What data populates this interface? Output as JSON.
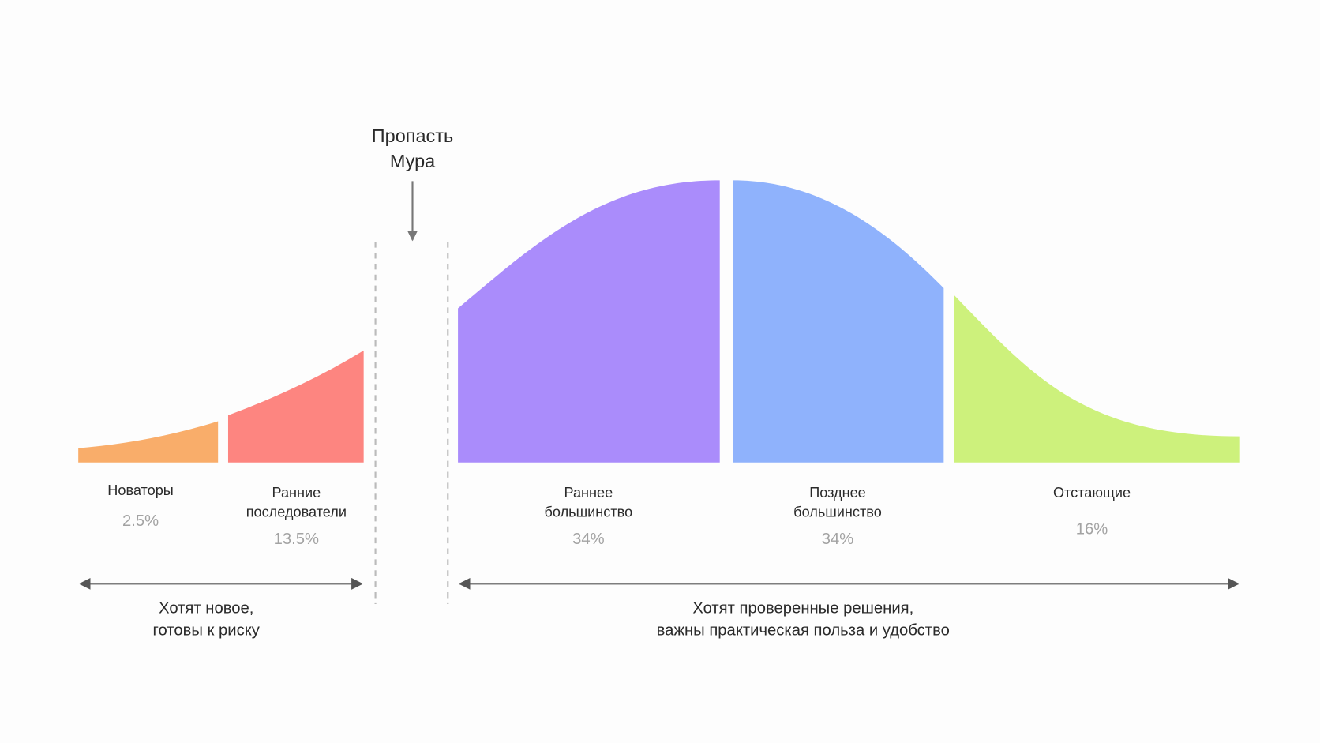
{
  "chasm": {
    "lines": [
      "Пропасть",
      "Мура"
    ]
  },
  "segments": [
    {
      "lines": [
        "Новаторы"
      ],
      "share": "2.5%"
    },
    {
      "lines": [
        "Ранние",
        "последователи"
      ],
      "share": "13.5%"
    },
    {
      "lines": [
        "Раннее",
        "большинство"
      ],
      "share": "34%"
    },
    {
      "lines": [
        "Позднее",
        "большинство"
      ],
      "share": "34%"
    },
    {
      "lines": [
        "Отстающие"
      ],
      "share": "16%"
    }
  ],
  "groups": [
    {
      "lines": [
        "Хотят новое,",
        "готовы к риску"
      ]
    },
    {
      "lines": [
        "Хотят проверенные решения,",
        "важны практическая польза и удобство"
      ]
    }
  ]
}
